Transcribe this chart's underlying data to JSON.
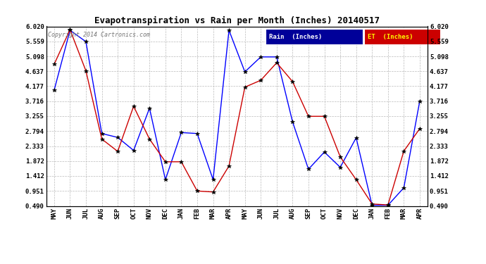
{
  "title": "Evapotranspiration vs Rain per Month (Inches) 20140517",
  "copyright": "Copyright 2014 Cartronics.com",
  "x_labels": [
    "MAY",
    "JUN",
    "JUL",
    "AUG",
    "SEP",
    "OCT",
    "NOV",
    "DEC",
    "JAN",
    "FEB",
    "MAR",
    "APR",
    "MAY",
    "JUN",
    "JUL",
    "AUG",
    "SEP",
    "OCT",
    "NOV",
    "DEC",
    "JAN",
    "FEB",
    "MAR",
    "APR"
  ],
  "rain_values": [
    4.05,
    5.9,
    5.55,
    2.72,
    2.6,
    2.2,
    3.5,
    1.3,
    2.75,
    2.72,
    1.3,
    5.9,
    4.62,
    5.08,
    5.08,
    3.08,
    1.62,
    2.15,
    1.68,
    2.59,
    0.51,
    0.51,
    1.05,
    3.72
  ],
  "et_values": [
    4.85,
    5.92,
    4.65,
    2.55,
    2.17,
    3.56,
    2.55,
    1.85,
    1.85,
    0.95,
    0.92,
    1.72,
    4.15,
    4.36,
    4.9,
    4.32,
    3.25,
    3.25,
    2.0,
    1.3,
    0.55,
    0.52,
    2.18,
    2.87
  ],
  "rain_color": "#0000FF",
  "et_color": "#CC0000",
  "marker": "*",
  "bg_color": "#FFFFFF",
  "grid_color": "#BBBBBB",
  "yticks": [
    0.49,
    0.951,
    1.412,
    1.872,
    2.333,
    2.794,
    3.255,
    3.716,
    4.177,
    4.637,
    5.098,
    5.559,
    6.02
  ],
  "ymin": 0.49,
  "ymax": 6.02,
  "legend_rain_bg": "#000099",
  "legend_et_bg": "#CC0000",
  "legend_rain_label": "Rain  (Inches)",
  "legend_et_label": "ET  (Inches)"
}
